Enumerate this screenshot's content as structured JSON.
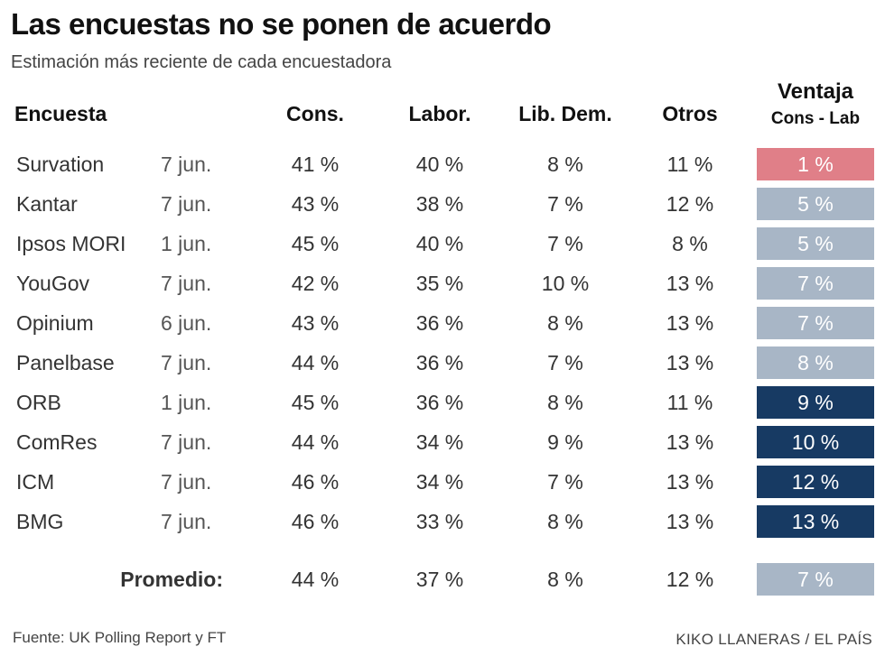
{
  "title": "Las encuestas no se ponen de acuerdo",
  "subtitle": "Estimación más reciente de  cada encuestadora",
  "colors": {
    "lead_low": "#e07f88",
    "lead_mid": "#a8b6c6",
    "lead_high": "#173a63"
  },
  "chart_data": {
    "type": "table",
    "title": "Las encuestas no se ponen de acuerdo",
    "subtitle": "Estimación más reciente de  cada encuestadora",
    "headers": {
      "encuesta": "Encuesta",
      "cons": "Cons.",
      "labor": "Labor.",
      "libdem": "Lib. Dem.",
      "otros": "Otros",
      "ventaja": "Ventaja",
      "ventaja_sub": "Cons - Lab"
    },
    "rows": [
      {
        "pollster": "Survation",
        "date": "7 jun.",
        "cons": "41 %",
        "labor": "40 %",
        "libdem": "8 %",
        "otros": "11 %",
        "lead": "1 %",
        "lead_value": 1,
        "lead_class": "lead_low"
      },
      {
        "pollster": "Kantar",
        "date": "7 jun.",
        "cons": "43 %",
        "labor": "38 %",
        "libdem": "7 %",
        "otros": "12 %",
        "lead": "5 %",
        "lead_value": 5,
        "lead_class": "lead_mid"
      },
      {
        "pollster": "Ipsos MORI",
        "date": "1 jun.",
        "cons": "45 %",
        "labor": "40 %",
        "libdem": "7 %",
        "otros": "8 %",
        "lead": "5 %",
        "lead_value": 5,
        "lead_class": "lead_mid"
      },
      {
        "pollster": "YouGov",
        "date": "7 jun.",
        "cons": "42 %",
        "labor": "35 %",
        "libdem": "10 %",
        "otros": "13 %",
        "lead": "7 %",
        "lead_value": 7,
        "lead_class": "lead_mid"
      },
      {
        "pollster": "Opinium",
        "date": "6 jun.",
        "cons": "43 %",
        "labor": "36 %",
        "libdem": "8 %",
        "otros": "13 %",
        "lead": "7 %",
        "lead_value": 7,
        "lead_class": "lead_mid"
      },
      {
        "pollster": "Panelbase",
        "date": "7 jun.",
        "cons": "44 %",
        "labor": "36 %",
        "libdem": "7 %",
        "otros": "13 %",
        "lead": "8 %",
        "lead_value": 8,
        "lead_class": "lead_mid"
      },
      {
        "pollster": "ORB",
        "date": "1 jun.",
        "cons": "45 %",
        "labor": "36 %",
        "libdem": "8 %",
        "otros": "11 %",
        "lead": "9 %",
        "lead_value": 9,
        "lead_class": "lead_high"
      },
      {
        "pollster": "ComRes",
        "date": "7 jun.",
        "cons": "44 %",
        "labor": "34 %",
        "libdem": "9 %",
        "otros": "13 %",
        "lead": "10 %",
        "lead_value": 10,
        "lead_class": "lead_high"
      },
      {
        "pollster": "ICM",
        "date": "7 jun.",
        "cons": "46 %",
        "labor": "34 %",
        "libdem": "7 %",
        "otros": "13 %",
        "lead": "12 %",
        "lead_value": 12,
        "lead_class": "lead_high"
      },
      {
        "pollster": "BMG",
        "date": "7 jun.",
        "cons": "46 %",
        "labor": "33 %",
        "libdem": "8 %",
        "otros": "13 %",
        "lead": "13 %",
        "lead_value": 13,
        "lead_class": "lead_high"
      }
    ],
    "average": {
      "label": "Promedio:",
      "cons": "44 %",
      "labor": "37 %",
      "libdem": "8 %",
      "otros": "12 %",
      "lead": "7 %",
      "lead_value": 7,
      "lead_class": "lead_mid"
    }
  },
  "footer": {
    "source": "Fuente: UK Polling Report y FT",
    "credit": "KIKO LLANERAS / EL PAÍS"
  }
}
